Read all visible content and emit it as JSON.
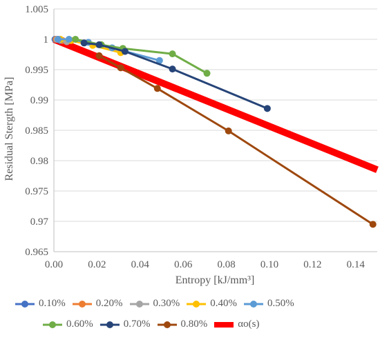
{
  "chart_data": {
    "type": "line",
    "title": "",
    "xlabel": "Entropy [kJ/mm³]",
    "ylabel": "Residual Stergth [MPa]",
    "xlim": [
      0,
      0.15
    ],
    "ylim": [
      0.965,
      1.005
    ],
    "x_ticks": [
      "0.00",
      "0.02",
      "0.04",
      "0.06",
      "0.08",
      "0.10",
      "0.12",
      "0.14"
    ],
    "y_ticks": [
      "0.965",
      "0.97",
      "0.975",
      "0.98",
      "0.985",
      "0.99",
      "0.995",
      "1",
      "1.005"
    ],
    "grid": "horizontal",
    "legend_position": "bottom",
    "series": [
      {
        "name": "0.10%",
        "color": "#4472C4",
        "x": [
          0.0005,
          0.0015,
          0.003
        ],
        "y": [
          1.0,
          1.0,
          0.9998
        ]
      },
      {
        "name": "0.20%",
        "color": "#ED7D31",
        "x": [
          0.001,
          0.002,
          0.004
        ],
        "y": [
          1.0,
          1.0,
          0.9998
        ]
      },
      {
        "name": "0.30%",
        "color": "#A5A5A5",
        "x": [
          0.0015,
          0.003,
          0.006
        ],
        "y": [
          1.0,
          0.9999,
          0.9996
        ]
      },
      {
        "name": "0.40%",
        "color": "#FFC000",
        "x": [
          0.003,
          0.008,
          0.018,
          0.031
        ],
        "y": [
          1.0,
          0.9998,
          0.999,
          0.9978
        ]
      },
      {
        "name": "0.50%",
        "color": "#5B9BD5",
        "x": [
          0.002,
          0.007,
          0.016,
          0.027,
          0.049
        ],
        "y": [
          1.0,
          1.0,
          0.9995,
          0.9986,
          0.9965
        ]
      },
      {
        "name": "0.60%",
        "color": "#70AD47",
        "x": [
          0.01,
          0.022,
          0.032,
          0.055,
          0.071
        ],
        "y": [
          1.0,
          0.9991,
          0.9985,
          0.9976,
          0.9944
        ]
      },
      {
        "name": "0.70%",
        "color": "#264478",
        "x": [
          0.014,
          0.021,
          0.033,
          0.055,
          0.099
        ],
        "y": [
          0.9994,
          0.9991,
          0.998,
          0.9951,
          0.9886
        ]
      },
      {
        "name": "0.80%",
        "color": "#9E480E",
        "x": [
          0.021,
          0.031,
          0.048,
          0.081,
          0.148
        ],
        "y": [
          0.9973,
          0.9953,
          0.9919,
          0.9849,
          0.9695
        ]
      },
      {
        "name": "αo(s)",
        "color": "#FF0000",
        "x": [
          0.0,
          0.15
        ],
        "y": [
          1.0,
          0.9785
        ],
        "markers": false
      }
    ]
  }
}
